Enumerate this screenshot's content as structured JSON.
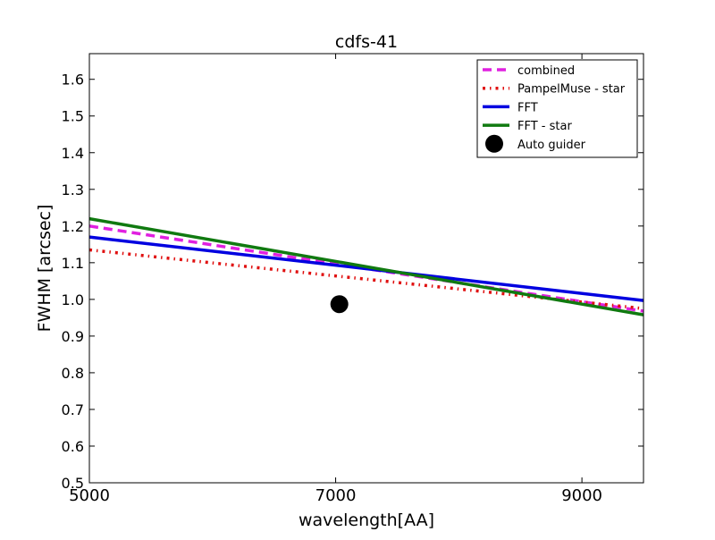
{
  "chart_data": {
    "type": "line",
    "title": "cdfs-41",
    "xlabel": "wavelength[AA]",
    "ylabel": "FWHM [arcsec]",
    "xlim": [
      5000,
      9500
    ],
    "ylim": [
      0.5,
      1.67
    ],
    "x_ticks": [
      5000,
      7000,
      9000
    ],
    "x_tick_labels": [
      "5000",
      "7000",
      "9000"
    ],
    "y_ticks": [
      0.5,
      0.6,
      0.7,
      0.8,
      0.9,
      1.0,
      1.1,
      1.2,
      1.3,
      1.4,
      1.5,
      1.6
    ],
    "y_tick_labels": [
      "0.5",
      "0.6",
      "0.7",
      "0.8",
      "0.9",
      "1.0",
      "1.1",
      "1.2",
      "1.3",
      "1.4",
      "1.5",
      "1.6"
    ],
    "grid": false,
    "legend_position": "top-right",
    "series": [
      {
        "name": "combined",
        "style": "dashed",
        "color": "#e020e0",
        "x": [
          5000,
          9500
        ],
        "y": [
          1.2,
          0.968
        ]
      },
      {
        "name": "PampelMuse - star",
        "style": "dashdot",
        "color": "#e01010",
        "x": [
          5000,
          9500
        ],
        "y": [
          1.135,
          0.975
        ]
      },
      {
        "name": "FFT",
        "style": "solid",
        "color": "#0000e0",
        "x": [
          5000,
          9500
        ],
        "y": [
          1.17,
          0.997
        ]
      },
      {
        "name": "FFT - star",
        "style": "solid",
        "color": "#107a10",
        "x": [
          5000,
          9500
        ],
        "y": [
          1.22,
          0.958
        ]
      },
      {
        "name": "Auto guider",
        "style": "marker",
        "color": "#000000",
        "x": [
          7030
        ],
        "y": [
          0.987
        ]
      }
    ]
  }
}
